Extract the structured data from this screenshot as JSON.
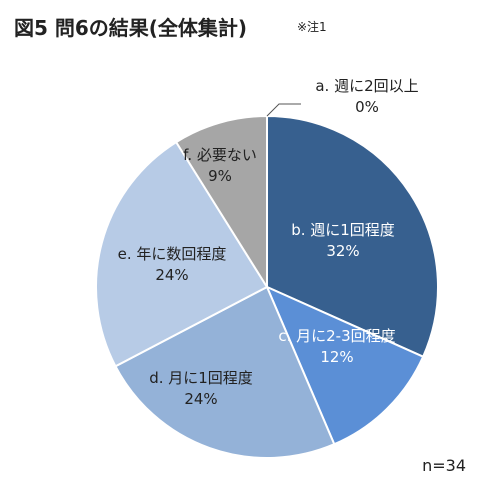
{
  "title": "図5 問6の結果(全体集計)",
  "title_note": "※注1",
  "sample_size": "n=34",
  "chart_data": {
    "type": "pie",
    "title": "図5 問6の結果(全体集計)",
    "slices": [
      {
        "label": "a. 週に2回以上",
        "value": 0,
        "percent_label": "0%",
        "color": "#2f5d8f"
      },
      {
        "label": "b. 週に1回程度",
        "value": 32,
        "percent_label": "32%",
        "color": "#37608f"
      },
      {
        "label": "c. 月に2-3回程度",
        "value": 12,
        "percent_label": "12%",
        "color": "#5b8fd6"
      },
      {
        "label": "d. 月に1回程度",
        "value": 24,
        "percent_label": "24%",
        "color": "#94b2d8"
      },
      {
        "label": "e. 年に数回程度",
        "value": 24,
        "percent_label": "24%",
        "color": "#b7cbe6"
      },
      {
        "label": "f. 必要ない",
        "value": 9,
        "percent_label": "9%",
        "color": "#a6a6a6"
      }
    ],
    "start_angle": "top",
    "direction": "clockwise",
    "legend": "none"
  }
}
